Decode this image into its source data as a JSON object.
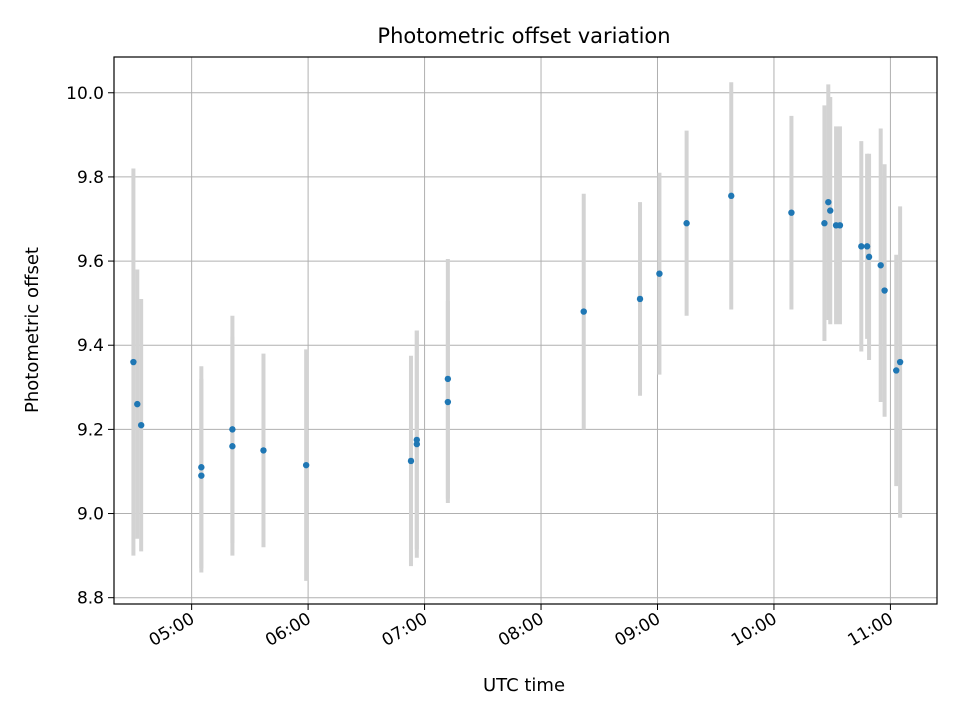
{
  "chart_data": {
    "type": "scatter",
    "title": "Photometric offset variation",
    "xlabel": "UTC time",
    "ylabel": "Photometric offset",
    "x_ticks": [
      "05:00",
      "06:00",
      "07:00",
      "08:00",
      "09:00",
      "10:00",
      "11:00"
    ],
    "y_ticks": [
      "8.8",
      "9.0",
      "9.2",
      "9.4",
      "9.6",
      "9.8",
      "10.0"
    ],
    "xlim": [
      "04:20",
      "11:24"
    ],
    "ylim": [
      8.785,
      10.085
    ],
    "grid": true,
    "marker_color": "#1f77b4",
    "errorbar_color": "#d3d3d3",
    "points": [
      {
        "t": "04:30",
        "y": 9.36,
        "err": 0.46
      },
      {
        "t": "04:32",
        "y": 9.26,
        "err": 0.32
      },
      {
        "t": "04:34",
        "y": 9.21,
        "err": 0.3
      },
      {
        "t": "05:05",
        "y": 9.11,
        "err": 0.24
      },
      {
        "t": "05:05",
        "y": 9.09,
        "err": 0.23
      },
      {
        "t": "05:21",
        "y": 9.2,
        "err": 0.27
      },
      {
        "t": "05:21",
        "y": 9.16,
        "err": 0.26
      },
      {
        "t": "05:37",
        "y": 9.15,
        "err": 0.23
      },
      {
        "t": "05:59",
        "y": 9.115,
        "err": 0.275
      },
      {
        "t": "06:53",
        "y": 9.125,
        "err": 0.25
      },
      {
        "t": "06:56",
        "y": 9.165,
        "err": 0.27
      },
      {
        "t": "06:56",
        "y": 9.175,
        "err": 0.26
      },
      {
        "t": "07:12",
        "y": 9.32,
        "err": 0.285
      },
      {
        "t": "07:12",
        "y": 9.265,
        "err": 0.24
      },
      {
        "t": "08:22",
        "y": 9.48,
        "err": 0.28
      },
      {
        "t": "08:51",
        "y": 9.51,
        "err": 0.23
      },
      {
        "t": "09:01",
        "y": 9.57,
        "err": 0.24
      },
      {
        "t": "09:15",
        "y": 9.69,
        "err": 0.22
      },
      {
        "t": "09:38",
        "y": 9.755,
        "err": 0.27
      },
      {
        "t": "10:09",
        "y": 9.715,
        "err": 0.23
      },
      {
        "t": "10:26",
        "y": 9.69,
        "err": 0.28
      },
      {
        "t": "10:28",
        "y": 9.74,
        "err": 0.28
      },
      {
        "t": "10:29",
        "y": 9.72,
        "err": 0.27
      },
      {
        "t": "10:32",
        "y": 9.685,
        "err": 0.235
      },
      {
        "t": "10:34",
        "y": 9.685,
        "err": 0.235
      },
      {
        "t": "10:45",
        "y": 9.635,
        "err": 0.25
      },
      {
        "t": "10:48",
        "y": 9.635,
        "err": 0.22
      },
      {
        "t": "10:49",
        "y": 9.61,
        "err": 0.245
      },
      {
        "t": "10:55",
        "y": 9.59,
        "err": 0.325
      },
      {
        "t": "10:57",
        "y": 9.53,
        "err": 0.3
      },
      {
        "t": "11:03",
        "y": 9.34,
        "err": 0.275
      },
      {
        "t": "11:05",
        "y": 9.36,
        "err": 0.37
      }
    ]
  }
}
